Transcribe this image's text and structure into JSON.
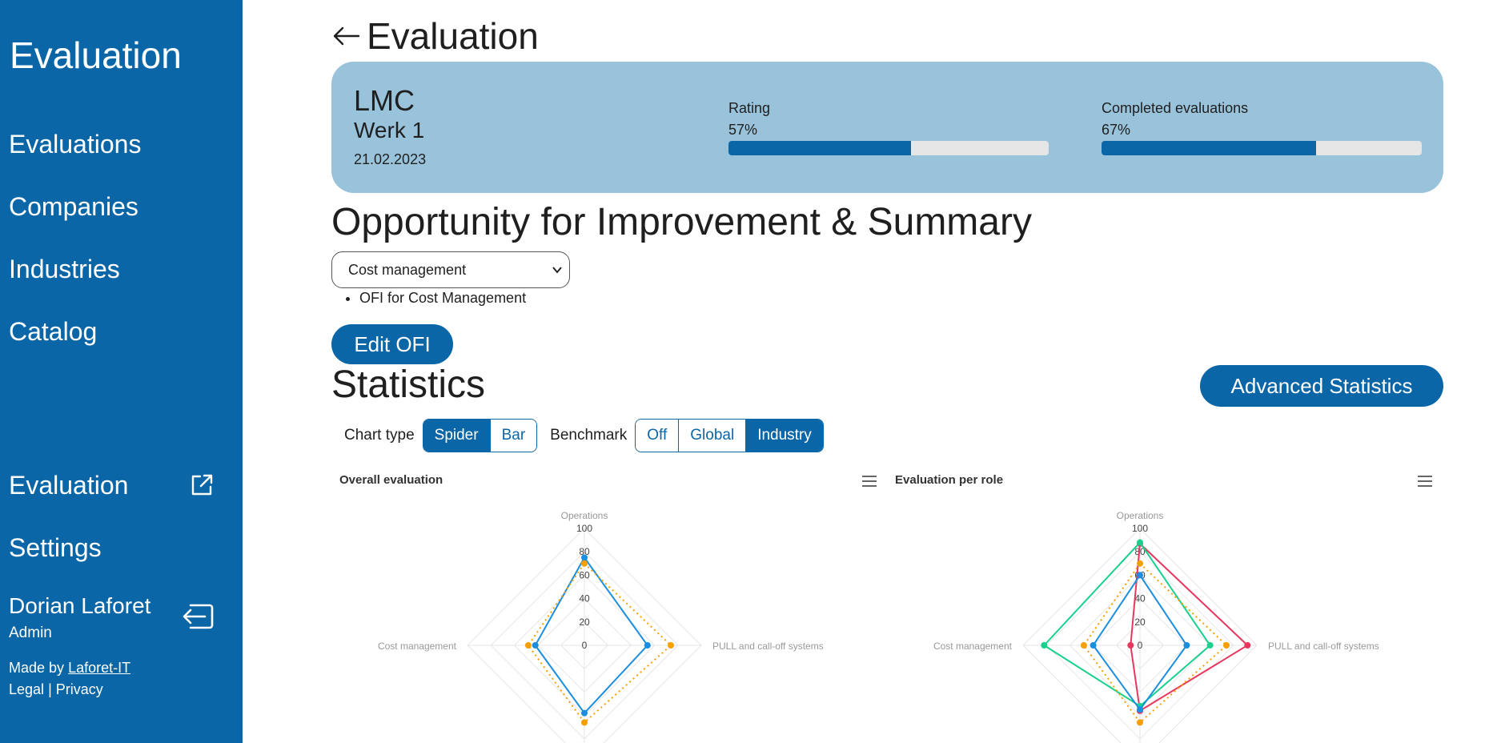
{
  "sidebar": {
    "app_title": "Evaluation",
    "nav": [
      "Evaluations",
      "Companies",
      "Industries",
      "Catalog"
    ],
    "bottom_nav": {
      "evaluation": "Evaluation",
      "settings": "Settings"
    },
    "user": {
      "name": "Dorian Laforet",
      "role": "Admin"
    },
    "made_by_prefix": "Made by",
    "made_by_link": "Laforet-IT",
    "legal": "Legal",
    "separator": "|",
    "privacy": "Privacy",
    "bg_color": "#0a66a6"
  },
  "header": {
    "title": "Evaluation"
  },
  "summary": {
    "company": "LMC",
    "plant": "Werk 1",
    "date": "21.02.2023",
    "rating_label": "Rating",
    "rating_value": "57%",
    "rating_fraction": 0.57,
    "completed_label": "Completed evaluations",
    "completed_value": "67%",
    "completed_fraction": 0.67
  },
  "ofi": {
    "title": "Opportunity for Improvement & Summary",
    "selected": "Cost management",
    "items": [
      "OFI for Cost Management"
    ],
    "edit_button": "Edit OFI"
  },
  "statistics": {
    "title": "Statistics",
    "advanced_button": "Advanced Statistics",
    "chart_type_label": "Chart type",
    "chart_types": [
      "Spider",
      "Bar"
    ],
    "chart_type_active": "Spider",
    "benchmark_label": "Benchmark",
    "benchmarks": [
      "Off",
      "Global",
      "Industry"
    ],
    "benchmark_active": "Industry"
  },
  "chart_data": [
    {
      "type": "radar",
      "title": "Overall evaluation",
      "axes": [
        "Operations",
        "PULL and call-off systems",
        "",
        "Cost management"
      ],
      "ticks": [
        "0",
        "20",
        "40",
        "60",
        "80",
        "100"
      ],
      "rmax": 100,
      "series": [
        {
          "values": [
            75,
            54,
            58,
            42
          ],
          "color": "#1b8ee0",
          "dashed": false
        },
        {
          "values": [
            70,
            74,
            66,
            48
          ],
          "color": "#f5a000",
          "dashed": true
        }
      ]
    },
    {
      "type": "radar",
      "title": "Evaluation per role",
      "axes": [
        "Operations",
        "PULL and call-off systems",
        "",
        "Cost management"
      ],
      "ticks": [
        "0",
        "20",
        "40",
        "60",
        "80",
        "100"
      ],
      "rmax": 100,
      "series": [
        {
          "values": [
            87,
            92,
            56,
            8
          ],
          "color": "#e8375e",
          "dashed": false
        },
        {
          "values": [
            88,
            60,
            52,
            82
          ],
          "color": "#17d18c",
          "dashed": false
        },
        {
          "values": [
            60,
            40,
            55,
            40
          ],
          "color": "#1b8ee0",
          "dashed": false
        },
        {
          "values": [
            70,
            74,
            66,
            48
          ],
          "color": "#f5a000",
          "dashed": true
        }
      ]
    }
  ]
}
